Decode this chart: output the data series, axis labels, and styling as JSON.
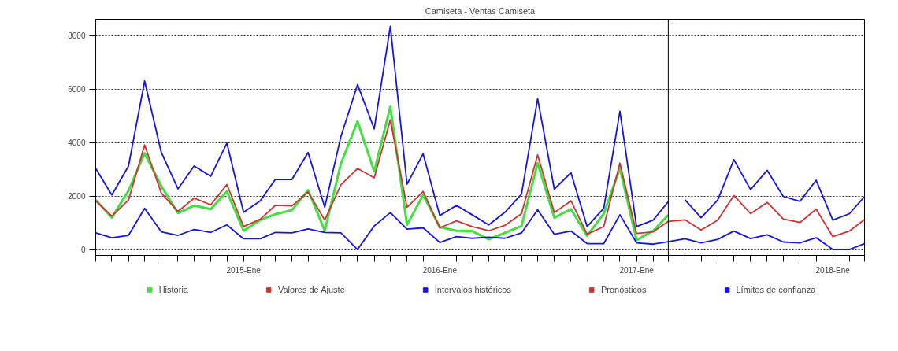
{
  "chart_data": {
    "type": "line",
    "title": "Camiseta - Ventas Camiseta",
    "x": [
      "2014-04",
      "2014-05",
      "2014-06",
      "2014-07",
      "2014-08",
      "2014-09",
      "2014-10",
      "2014-11",
      "2014-12",
      "2015-01",
      "2015-02",
      "2015-03",
      "2015-04",
      "2015-05",
      "2015-06",
      "2015-07",
      "2015-08",
      "2015-09",
      "2015-10",
      "2015-11",
      "2015-12",
      "2016-01",
      "2016-02",
      "2016-03",
      "2016-04",
      "2016-05",
      "2016-06",
      "2016-07",
      "2016-08",
      "2016-09",
      "2016-10",
      "2016-11",
      "2016-12",
      "2017-01",
      "2017-02",
      "2017-03",
      "2017-04",
      "2017-05",
      "2017-06",
      "2017-07",
      "2017-08",
      "2017-09",
      "2017-10",
      "2017-11",
      "2017-12",
      "2018-01",
      "2018-02",
      "2018-03"
    ],
    "series": [
      {
        "name": "Historia",
        "color": "#44dd44",
        "values": [
          1850,
          1190,
          2200,
          3600,
          2370,
          1360,
          1640,
          1510,
          2170,
          700,
          1100,
          1320,
          1470,
          2220,
          700,
          3210,
          4790,
          2920,
          5340,
          920,
          2040,
          840,
          700,
          690,
          380,
          620,
          880,
          3230,
          1190,
          1510,
          510,
          1340,
          3030,
          350,
          700,
          1290,
          null,
          null,
          null,
          null,
          null,
          null,
          null,
          null,
          null,
          null,
          null,
          null
        ]
      },
      {
        "name": "Valores de Ajuste",
        "color": "#cc3333",
        "values": [
          1820,
          1250,
          1850,
          3910,
          2110,
          1420,
          1920,
          1670,
          2430,
          860,
          1130,
          1650,
          1630,
          2150,
          1100,
          2420,
          3030,
          2680,
          4850,
          1580,
          2170,
          810,
          1070,
          860,
          700,
          900,
          1340,
          3540,
          1380,
          1820,
          570,
          860,
          3230,
          600,
          660,
          1050,
          null,
          null,
          null,
          null,
          null,
          null,
          null,
          null,
          null,
          null,
          null,
          null
        ]
      },
      {
        "name": "Intervalos históricos",
        "color": "#1515dd",
        "values": [
          3030,
          2040,
          3120,
          6300,
          3630,
          2270,
          3120,
          2740,
          3980,
          1390,
          1820,
          2620,
          2620,
          3630,
          1580,
          4220,
          6170,
          4510,
          8350,
          2440,
          3580,
          1270,
          1650,
          1300,
          920,
          1390,
          2070,
          5640,
          2260,
          2870,
          860,
          1540,
          5170,
          860,
          1100,
          1790,
          null,
          null,
          null,
          null,
          null,
          null,
          null,
          null,
          null,
          null,
          null,
          null
        ]
      },
      {
        "color": "#1515dd",
        "values": [
          620,
          440,
          530,
          1540,
          660,
          530,
          750,
          640,
          920,
          400,
          400,
          640,
          620,
          770,
          640,
          620,
          0,
          880,
          1380,
          760,
          810,
          260,
          480,
          420,
          460,
          420,
          620,
          1490,
          570,
          690,
          220,
          220,
          1300,
          250,
          200,
          290,
          400,
          250,
          380,
          690,
          410,
          550,
          280,
          250,
          440,
          0,
          0,
          220
        ]
      },
      {
        "name": "Pronósticos",
        "color": "#cc3333",
        "values": [
          null,
          null,
          null,
          null,
          null,
          null,
          null,
          null,
          null,
          null,
          null,
          null,
          null,
          null,
          null,
          null,
          null,
          null,
          null,
          null,
          null,
          null,
          null,
          null,
          null,
          null,
          null,
          null,
          null,
          null,
          null,
          null,
          null,
          null,
          null,
          1050,
          1110,
          730,
          1100,
          2020,
          1340,
          1760,
          1140,
          1010,
          1510,
          480,
          690,
          1120
        ]
      },
      {
        "name": "Límites de confianza",
        "color": "#1515dd",
        "values": [
          null,
          null,
          null,
          null,
          null,
          null,
          null,
          null,
          null,
          null,
          null,
          null,
          null,
          null,
          null,
          null,
          null,
          null,
          null,
          null,
          null,
          null,
          null,
          null,
          null,
          null,
          null,
          null,
          null,
          null,
          null,
          null,
          null,
          null,
          null,
          null,
          1860,
          1190,
          1850,
          3360,
          2240,
          2960,
          1980,
          1800,
          2590,
          1100,
          1340,
          1980
        ]
      }
    ],
    "xlim": [
      "2014-04",
      "2018-03"
    ],
    "xticks": [
      {
        "value": "2014-04",
        "label": null
      },
      {
        "value": "2014-05",
        "label": null
      },
      {
        "value": "2014-06",
        "label": null
      },
      {
        "value": "2014-07",
        "label": null
      },
      {
        "value": "2014-08",
        "label": null
      },
      {
        "value": "2014-09",
        "label": null
      },
      {
        "value": "2014-10",
        "label": null
      },
      {
        "value": "2014-11",
        "label": null
      },
      {
        "value": "2014-12",
        "label": null
      },
      {
        "value": "2015-01",
        "label": "2015-Ene"
      },
      {
        "value": "2015-02",
        "label": null
      },
      {
        "value": "2015-03",
        "label": null
      },
      {
        "value": "2015-04",
        "label": null
      },
      {
        "value": "2015-05",
        "label": null
      },
      {
        "value": "2015-06",
        "label": null
      },
      {
        "value": "2015-07",
        "label": null
      },
      {
        "value": "2015-08",
        "label": null
      },
      {
        "value": "2015-09",
        "label": null
      },
      {
        "value": "2015-10",
        "label": null
      },
      {
        "value": "2015-11",
        "label": null
      },
      {
        "value": "2015-12",
        "label": null
      },
      {
        "value": "2016-01",
        "label": "2016-Ene"
      },
      {
        "value": "2016-02",
        "label": null
      },
      {
        "value": "2016-03",
        "label": null
      },
      {
        "value": "2016-04",
        "label": null
      },
      {
        "value": "2016-05",
        "label": null
      },
      {
        "value": "2016-06",
        "label": null
      },
      {
        "value": "2016-07",
        "label": null
      },
      {
        "value": "2016-08",
        "label": null
      },
      {
        "value": "2016-09",
        "label": null
      },
      {
        "value": "2016-10",
        "label": null
      },
      {
        "value": "2016-11",
        "label": null
      },
      {
        "value": "2016-12",
        "label": null
      },
      {
        "value": "2017-01",
        "label": "2017-Ene"
      },
      {
        "value": "2017-02",
        "label": null
      },
      {
        "value": "2017-03",
        "label": null
      },
      {
        "value": "2017-04",
        "label": null
      },
      {
        "value": "2017-05",
        "label": null
      },
      {
        "value": "2017-06",
        "label": null
      },
      {
        "value": "2017-07",
        "label": null
      },
      {
        "value": "2017-08",
        "label": null
      },
      {
        "value": "2017-09",
        "label": null
      },
      {
        "value": "2017-10",
        "label": null
      },
      {
        "value": "2017-11",
        "label": null
      },
      {
        "value": "2017-12",
        "label": null
      },
      {
        "value": "2018-01",
        "label": "2018-Ene"
      },
      {
        "value": "2018-02",
        "label": null
      },
      {
        "value": "2018-03",
        "label": null
      }
    ],
    "ylim": [
      -220,
      8610
    ],
    "yticks": [
      0,
      2000,
      4000,
      6000,
      8000
    ],
    "grid": "y",
    "legend": "bottom",
    "ref_lines": [
      {
        "axis": "x",
        "value": "2017-03",
        "color": "#000000"
      }
    ]
  }
}
